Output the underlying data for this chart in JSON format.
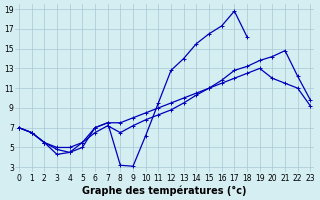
{
  "title": "Graphe des températures (°c)",
  "background_color": "#d4eef2",
  "grid_color": "#aac8d4",
  "line_color": "#0000bb",
  "yticks": [
    3,
    5,
    7,
    9,
    11,
    13,
    15,
    17,
    19
  ],
  "xticks": [
    0,
    1,
    2,
    3,
    4,
    5,
    6,
    7,
    8,
    9,
    10,
    11,
    12,
    13,
    14,
    15,
    16,
    17,
    18,
    19,
    20,
    21,
    22,
    23
  ],
  "xlim": [
    -0.3,
    23.3
  ],
  "ylim": [
    2.5,
    19.5
  ],
  "curve1_x": [
    0,
    1,
    2,
    3,
    4,
    5,
    6,
    7,
    8,
    9,
    10,
    11,
    12,
    13,
    14,
    15,
    16,
    17,
    18
  ],
  "curve1_y": [
    7.0,
    6.5,
    5.5,
    4.3,
    4.5,
    5.0,
    7.0,
    7.5,
    3.2,
    3.1,
    6.2,
    9.5,
    12.8,
    14.0,
    15.5,
    16.5,
    17.3,
    18.8,
    16.2
  ],
  "curve2_x": [
    0,
    1,
    2,
    3,
    4,
    5,
    6,
    7,
    8,
    9,
    10,
    11,
    12,
    13,
    14,
    15,
    16,
    17,
    18,
    19,
    20,
    21,
    22,
    23
  ],
  "curve2_y": [
    7.0,
    6.5,
    5.5,
    5.0,
    5.0,
    5.5,
    7.0,
    7.5,
    7.5,
    8.0,
    8.5,
    9.0,
    9.5,
    10.0,
    10.5,
    11.0,
    11.5,
    12.0,
    12.5,
    13.0,
    12.0,
    11.5,
    11.0,
    9.2
  ],
  "curve3_x": [
    0,
    1,
    2,
    3,
    4,
    5,
    6,
    7,
    8,
    9,
    10,
    11,
    12,
    13,
    14,
    15,
    16,
    17,
    18,
    19,
    20,
    21,
    22,
    23
  ],
  "curve3_y": [
    7.0,
    6.5,
    5.5,
    4.8,
    4.5,
    5.5,
    6.5,
    7.2,
    6.5,
    7.2,
    7.8,
    8.3,
    8.8,
    9.5,
    10.3,
    11.0,
    11.8,
    12.8,
    13.2,
    13.8,
    14.2,
    14.8,
    12.2,
    9.8
  ],
  "marker": "+"
}
